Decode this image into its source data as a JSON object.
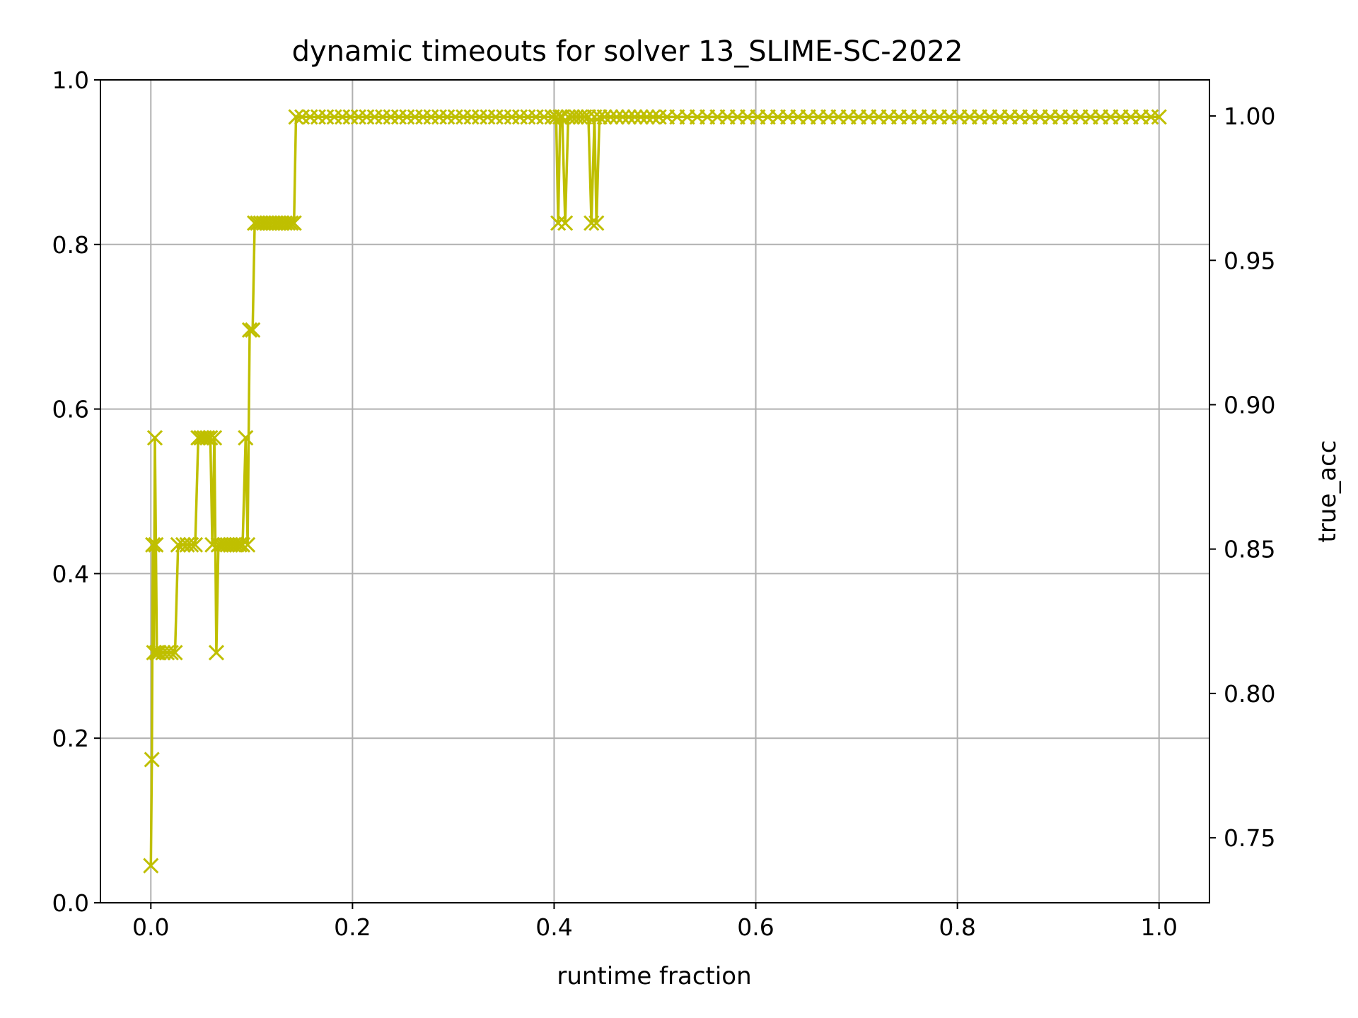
{
  "chart_data": {
    "type": "line",
    "title": "dynamic timeouts for solver 13_SLIME-SC-2022",
    "xlabel": "runtime fraction",
    "ylabel": "",
    "ylabel_right": "true_acc",
    "xlim": [
      -0.05,
      1.05
    ],
    "ylim": [
      0.0,
      1.0
    ],
    "ylim_right": [
      0.7275,
      1.0125
    ],
    "x_ticks": [
      "0.0",
      "0.2",
      "0.4",
      "0.6",
      "0.8",
      "1.0"
    ],
    "x_tick_values": [
      0.0,
      0.2,
      0.4,
      0.6,
      0.8,
      1.0
    ],
    "y_ticks": [
      "0.0",
      "0.2",
      "0.4",
      "0.6",
      "0.8",
      "1.0"
    ],
    "y_tick_values": [
      0.0,
      0.2,
      0.4,
      0.6,
      0.8,
      1.0
    ],
    "y_right_ticks": [
      "0.75",
      "0.80",
      "0.85",
      "0.90",
      "0.95",
      "1.00"
    ],
    "y_right_tick_values": [
      0.75,
      0.8,
      0.85,
      0.9,
      0.95,
      1.0
    ],
    "grid": true,
    "series_color": "#bfbf00",
    "right_label_color": "#ff0000",
    "marker": "x",
    "series": [
      {
        "points": [
          [
            0.0,
            0.045
          ],
          [
            0.001,
            0.174
          ],
          [
            0.002,
            0.435
          ],
          [
            0.003,
            0.304
          ],
          [
            0.004,
            0.565
          ],
          [
            0.005,
            0.435
          ],
          [
            0.006,
            0.304
          ],
          [
            0.008,
            0.304
          ],
          [
            0.012,
            0.304
          ],
          [
            0.016,
            0.304
          ],
          [
            0.02,
            0.304
          ],
          [
            0.024,
            0.304
          ],
          [
            0.027,
            0.435
          ],
          [
            0.032,
            0.435
          ],
          [
            0.036,
            0.435
          ],
          [
            0.04,
            0.435
          ],
          [
            0.044,
            0.435
          ],
          [
            0.047,
            0.565
          ],
          [
            0.05,
            0.565
          ],
          [
            0.053,
            0.565
          ],
          [
            0.056,
            0.565
          ],
          [
            0.059,
            0.565
          ],
          [
            0.061,
            0.435
          ],
          [
            0.063,
            0.565
          ],
          [
            0.065,
            0.304
          ],
          [
            0.067,
            0.435
          ],
          [
            0.07,
            0.435
          ],
          [
            0.073,
            0.435
          ],
          [
            0.076,
            0.435
          ],
          [
            0.079,
            0.435
          ],
          [
            0.082,
            0.435
          ],
          [
            0.085,
            0.435
          ],
          [
            0.088,
            0.435
          ],
          [
            0.091,
            0.435
          ],
          [
            0.094,
            0.565
          ],
          [
            0.096,
            0.435
          ],
          [
            0.098,
            0.696
          ],
          [
            0.101,
            0.696
          ],
          [
            0.103,
            0.826
          ],
          [
            0.106,
            0.826
          ],
          [
            0.109,
            0.826
          ],
          [
            0.112,
            0.826
          ],
          [
            0.115,
            0.826
          ],
          [
            0.118,
            0.826
          ],
          [
            0.121,
            0.826
          ],
          [
            0.124,
            0.826
          ],
          [
            0.127,
            0.826
          ],
          [
            0.13,
            0.826
          ],
          [
            0.133,
            0.826
          ],
          [
            0.136,
            0.826
          ],
          [
            0.139,
            0.826
          ],
          [
            0.142,
            0.826
          ],
          [
            0.144,
            0.955
          ],
          [
            0.15,
            0.955
          ],
          [
            0.158,
            0.955
          ],
          [
            0.166,
            0.955
          ],
          [
            0.174,
            0.955
          ],
          [
            0.182,
            0.955
          ],
          [
            0.19,
            0.955
          ],
          [
            0.198,
            0.955
          ],
          [
            0.206,
            0.955
          ],
          [
            0.214,
            0.955
          ],
          [
            0.222,
            0.955
          ],
          [
            0.23,
            0.955
          ],
          [
            0.238,
            0.955
          ],
          [
            0.246,
            0.955
          ],
          [
            0.254,
            0.955
          ],
          [
            0.262,
            0.955
          ],
          [
            0.27,
            0.955
          ],
          [
            0.278,
            0.955
          ],
          [
            0.286,
            0.955
          ],
          [
            0.294,
            0.955
          ],
          [
            0.302,
            0.955
          ],
          [
            0.31,
            0.955
          ],
          [
            0.318,
            0.955
          ],
          [
            0.326,
            0.955
          ],
          [
            0.334,
            0.955
          ],
          [
            0.342,
            0.955
          ],
          [
            0.35,
            0.955
          ],
          [
            0.358,
            0.955
          ],
          [
            0.366,
            0.955
          ],
          [
            0.374,
            0.955
          ],
          [
            0.382,
            0.955
          ],
          [
            0.39,
            0.955
          ],
          [
            0.398,
            0.955
          ],
          [
            0.402,
            0.955
          ],
          [
            0.404,
            0.826
          ],
          [
            0.406,
            0.955
          ],
          [
            0.408,
            0.955
          ],
          [
            0.411,
            0.826
          ],
          [
            0.414,
            0.955
          ],
          [
            0.418,
            0.955
          ],
          [
            0.422,
            0.955
          ],
          [
            0.426,
            0.955
          ],
          [
            0.43,
            0.955
          ],
          [
            0.434,
            0.955
          ],
          [
            0.437,
            0.826
          ],
          [
            0.44,
            0.955
          ],
          [
            0.442,
            0.826
          ],
          [
            0.445,
            0.955
          ],
          [
            0.45,
            0.955
          ],
          [
            0.456,
            0.955
          ],
          [
            0.462,
            0.955
          ],
          [
            0.468,
            0.955
          ],
          [
            0.474,
            0.955
          ],
          [
            0.48,
            0.955
          ],
          [
            0.486,
            0.955
          ],
          [
            0.492,
            0.955
          ],
          [
            0.498,
            0.955
          ],
          [
            0.504,
            0.955
          ],
          [
            0.512,
            0.955
          ],
          [
            0.522,
            0.955
          ],
          [
            0.532,
            0.955
          ],
          [
            0.542,
            0.955
          ],
          [
            0.552,
            0.955
          ],
          [
            0.562,
            0.955
          ],
          [
            0.572,
            0.955
          ],
          [
            0.582,
            0.955
          ],
          [
            0.592,
            0.955
          ],
          [
            0.602,
            0.955
          ],
          [
            0.612,
            0.955
          ],
          [
            0.622,
            0.955
          ],
          [
            0.632,
            0.955
          ],
          [
            0.642,
            0.955
          ],
          [
            0.652,
            0.955
          ],
          [
            0.662,
            0.955
          ],
          [
            0.672,
            0.955
          ],
          [
            0.682,
            0.955
          ],
          [
            0.692,
            0.955
          ],
          [
            0.702,
            0.955
          ],
          [
            0.712,
            0.955
          ],
          [
            0.722,
            0.955
          ],
          [
            0.732,
            0.955
          ],
          [
            0.742,
            0.955
          ],
          [
            0.752,
            0.955
          ],
          [
            0.762,
            0.955
          ],
          [
            0.772,
            0.955
          ],
          [
            0.782,
            0.955
          ],
          [
            0.792,
            0.955
          ],
          [
            0.802,
            0.955
          ],
          [
            0.812,
            0.955
          ],
          [
            0.822,
            0.955
          ],
          [
            0.832,
            0.955
          ],
          [
            0.842,
            0.955
          ],
          [
            0.852,
            0.955
          ],
          [
            0.862,
            0.955
          ],
          [
            0.872,
            0.955
          ],
          [
            0.882,
            0.955
          ],
          [
            0.892,
            0.955
          ],
          [
            0.902,
            0.955
          ],
          [
            0.912,
            0.955
          ],
          [
            0.922,
            0.955
          ],
          [
            0.932,
            0.955
          ],
          [
            0.942,
            0.955
          ],
          [
            0.952,
            0.955
          ],
          [
            0.962,
            0.955
          ],
          [
            0.972,
            0.955
          ],
          [
            0.982,
            0.955
          ],
          [
            0.992,
            0.955
          ],
          [
            1.0,
            0.955
          ]
        ]
      }
    ]
  }
}
